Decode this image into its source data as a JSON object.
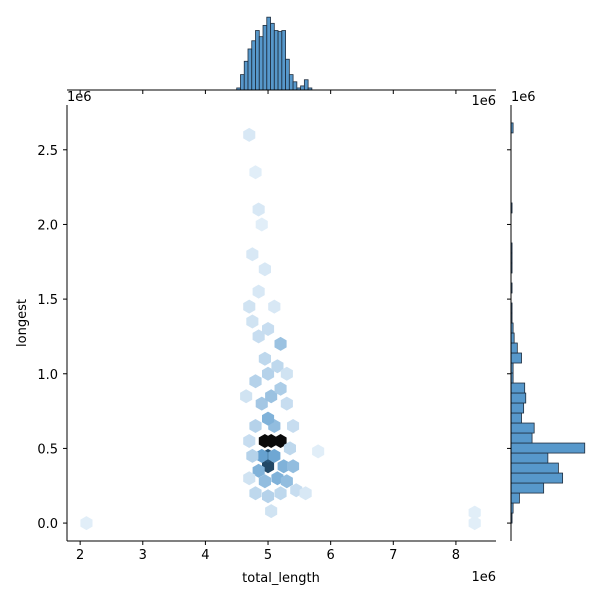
{
  "chart_data": {
    "type": "hexbin",
    "x_label": "total_length",
    "y_label": "longest",
    "x_offset": "1e6",
    "y_offset": "1e6",
    "xlim": [
      1.79,
      8.64
    ],
    "ylim": [
      -0.12,
      2.8
    ],
    "xticks": [
      2,
      3,
      4,
      5,
      6,
      7,
      8
    ],
    "yticks": [
      {
        "value": 0,
        "label": "0.0"
      },
      0.5,
      {
        "value": 1,
        "label": "1.0"
      },
      1.5,
      {
        "value": 2,
        "label": "2.0"
      },
      2.5
    ],
    "color": "#3a86c2",
    "hexbins": {
      "x": [
        4.95,
        5.05,
        5.2,
        5.0,
        5.0,
        4.9,
        5.1,
        5.25,
        5.4,
        4.85,
        5.15,
        5.3,
        4.95,
        5.1,
        5.0,
        4.9,
        5.05,
        5.2,
        4.8,
        5.0,
        5.15,
        4.95,
        5.2,
        4.85,
        5.0,
        4.75,
        4.7,
        4.85,
        4.95,
        4.75,
        4.85,
        4.7,
        4.8,
        4.9,
        5.05,
        4.75,
        4.7,
        5.35,
        5.4,
        4.8,
        5.3,
        4.7,
        4.8,
        5.0,
        5.2,
        5.45,
        5.6,
        5.8,
        2.1,
        8.3,
        8.3,
        5.3,
        4.65,
        5.1
      ],
      "y": [
        0.55,
        0.55,
        0.55,
        0.38,
        0.45,
        0.45,
        0.45,
        0.38,
        0.38,
        0.35,
        0.3,
        0.28,
        0.28,
        0.65,
        0.7,
        0.8,
        0.85,
        0.9,
        0.95,
        1.0,
        1.05,
        1.1,
        1.2,
        1.25,
        1.3,
        1.35,
        1.45,
        1.55,
        1.7,
        1.8,
        2.1,
        2.6,
        2.35,
        2.0,
        0.08,
        0.45,
        0.55,
        0.5,
        0.65,
        0.65,
        0.8,
        0.3,
        0.2,
        0.18,
        0.2,
        0.22,
        0.2,
        0.48,
        0.0,
        0.07,
        0.0,
        1.0,
        0.85,
        1.45
      ],
      "counts": [
        40,
        40,
        40,
        30,
        28,
        15,
        14,
        12,
        10,
        12,
        12,
        10,
        10,
        10,
        12,
        8,
        9,
        7,
        6,
        6,
        5,
        5,
        9,
        4,
        4,
        3,
        3,
        2,
        2,
        2,
        2,
        2,
        1,
        1,
        3,
        6,
        4,
        5,
        4,
        6,
        4,
        3,
        5,
        6,
        5,
        4,
        2,
        1,
        1,
        1,
        1,
        3,
        3,
        2
      ]
    },
    "marginal_x": {
      "bins": [
        4.5,
        4.56,
        4.62,
        4.68,
        4.74,
        4.8,
        4.86,
        4.92,
        4.98,
        5.04,
        5.1,
        5.16,
        5.22,
        5.28,
        5.34,
        5.4,
        5.46,
        5.52,
        5.58,
        5.64,
        5.7
      ],
      "counts": [
        2,
        15,
        28,
        40,
        48,
        58,
        52,
        63,
        71,
        65,
        58,
        57,
        58,
        30,
        15,
        8,
        2,
        4,
        10,
        2
      ],
      "ylim": [
        0,
        78
      ]
    },
    "marginal_y": {
      "bins": [
        0,
        0.067,
        0.134,
        0.201,
        0.268,
        0.335,
        0.402,
        0.469,
        0.536,
        0.603,
        0.67,
        0.737,
        0.804,
        0.871,
        0.938,
        1.005,
        1.072,
        1.139,
        1.206,
        1.273,
        1.34,
        1.407,
        1.474,
        1.541,
        1.608,
        1.675,
        1.742,
        1.809,
        1.876,
        1.943,
        2.01,
        2.077,
        2.144,
        2.211,
        2.278,
        2.345,
        2.412,
        2.479,
        2.546,
        2.613,
        2.68
      ],
      "counts": [
        1,
        2,
        8,
        31,
        49,
        45,
        35,
        70,
        20,
        22,
        10,
        12,
        14,
        13,
        2,
        2,
        10,
        6,
        3,
        2,
        1,
        1,
        0,
        1,
        0,
        1,
        1,
        1,
        0,
        0,
        0,
        1,
        0,
        0,
        0,
        0,
        0,
        0,
        0,
        2
      ],
      "xlim": [
        0,
        75
      ]
    }
  }
}
